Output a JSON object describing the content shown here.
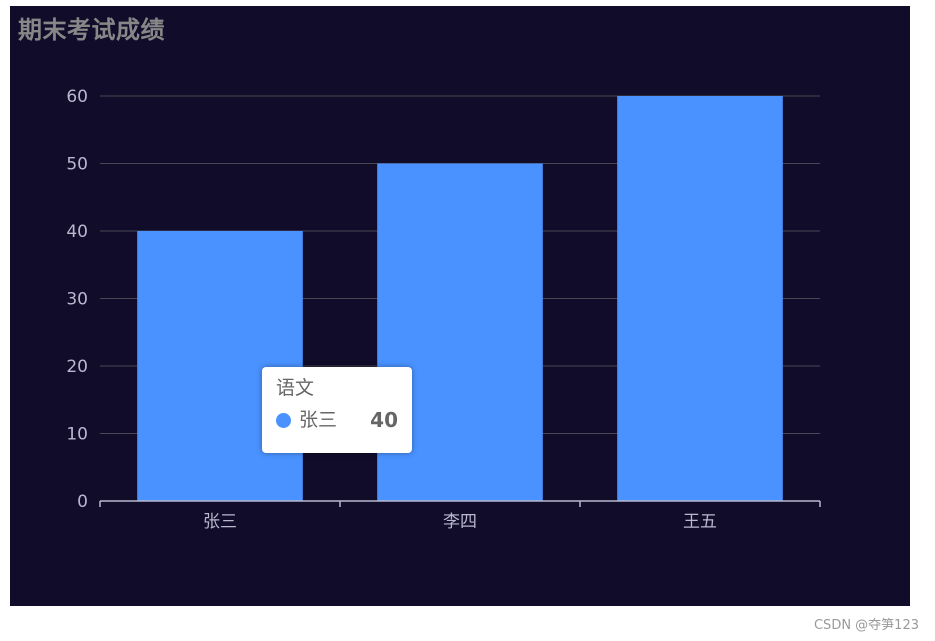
{
  "title": "期末考试成绩",
  "watermark": "CSDN @夺笋123",
  "colors": {
    "background": "#100c2a",
    "bar": "#4992ff",
    "axis_line": "#b9b8ce",
    "grid_line": "#484753",
    "tick_label": "#b9b8ce",
    "title": "#878787"
  },
  "chart_data": {
    "type": "bar",
    "title": "期末考试成绩",
    "categories": [
      "张三",
      "李四",
      "王五"
    ],
    "series": [
      {
        "name": "语文",
        "values": [
          40,
          50,
          60
        ]
      }
    ],
    "ylim": [
      0,
      60
    ],
    "yticks": [
      0,
      10,
      20,
      30,
      40,
      50,
      60
    ],
    "grid": true,
    "xlabel": "",
    "ylabel": ""
  },
  "tooltip": {
    "series_name": "语文",
    "category": "张三",
    "value": "40",
    "marker_color": "#4992ff"
  }
}
